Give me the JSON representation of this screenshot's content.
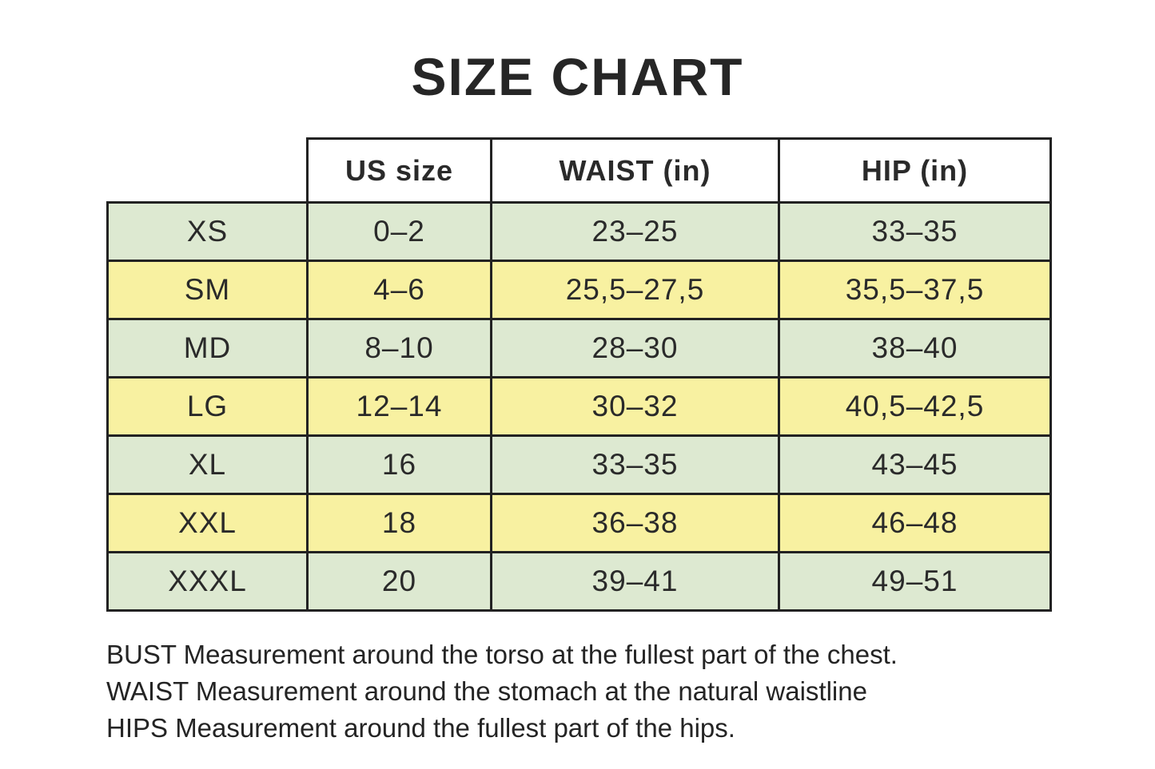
{
  "page": {
    "title": "SIZE CHART",
    "notes": [
      "BUST Measurement around the torso at the fullest part of the chest.",
      "WAIST Measurement around the stomach at the natural waistline",
      "HIPS Measurement around the fullest part of the hips."
    ]
  },
  "chart_data": {
    "type": "table",
    "title": "SIZE CHART",
    "columns": [
      "US size",
      "WAIST (in)",
      "HIP (in)"
    ],
    "row_label_column": "size",
    "rows": [
      [
        "XS",
        "0–2",
        "23–25",
        "33–35"
      ],
      [
        "SM",
        "4–6",
        "25,5–27,5",
        "35,5–37,5"
      ],
      [
        "MD",
        "8–10",
        "28–30",
        "38–40"
      ],
      [
        "LG",
        "12–14",
        "30–32",
        "40,5–42,5"
      ],
      [
        "XL",
        "16",
        "33–35",
        "43–45"
      ],
      [
        "XXL",
        "18",
        "36–38",
        "46–48"
      ],
      [
        "XXXL",
        "20",
        "39–41",
        "49–51"
      ]
    ],
    "row_colors": [
      "green",
      "yellow",
      "green",
      "yellow",
      "green",
      "yellow",
      "green"
    ],
    "units": "inches, decimal comma notation"
  },
  "colors": {
    "row_green": "#dde9d1",
    "row_yellow": "#f8f1a1",
    "border": "#222222",
    "text": "#2a2a2a",
    "header_bg": "#ffffff"
  }
}
